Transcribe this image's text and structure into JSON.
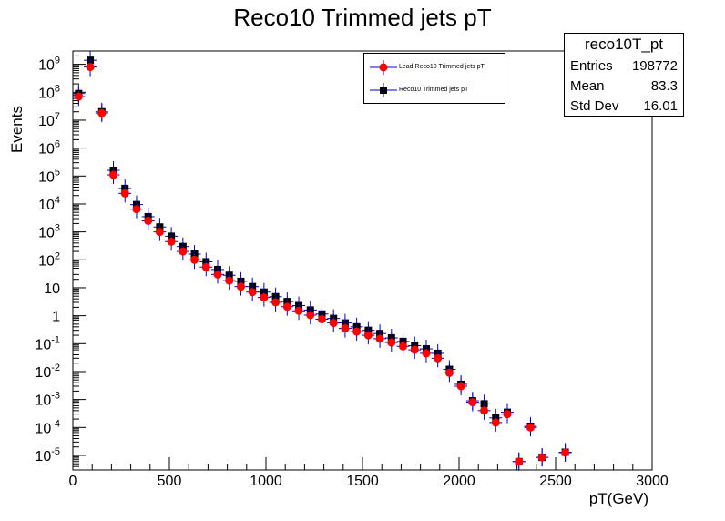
{
  "chart_data": {
    "type": "scatter",
    "title": "Reco10 Trimmed jets pT",
    "xlabel": "pT(GeV)",
    "ylabel": "Events",
    "xlim": [
      0,
      3000
    ],
    "ylim": [
      3e-06,
      3000000000.0
    ],
    "yscale": "log",
    "x_ticks": [
      "0",
      "500",
      "1000",
      "1500",
      "2000",
      "2500",
      "3000"
    ],
    "y_ticks": [
      {
        "base": "10",
        "exp": "-5"
      },
      {
        "base": "10",
        "exp": "-4"
      },
      {
        "base": "10",
        "exp": "-3"
      },
      {
        "base": "10",
        "exp": "-2"
      },
      {
        "base": "10",
        "exp": "-1"
      },
      {
        "base": "1",
        "exp": ""
      },
      {
        "base": "10",
        "exp": ""
      },
      {
        "base": "10",
        "exp": "2"
      },
      {
        "base": "10",
        "exp": "3"
      },
      {
        "base": "10",
        "exp": "4"
      },
      {
        "base": "10",
        "exp": "5"
      },
      {
        "base": "10",
        "exp": "6"
      },
      {
        "base": "10",
        "exp": "7"
      },
      {
        "base": "10",
        "exp": "8"
      },
      {
        "base": "10",
        "exp": "9"
      }
    ],
    "legend": {
      "placement": "top-right",
      "entries": [
        "Lead Reco10 Trimmed jets pT",
        "Reco10 Trimmed jets pT"
      ]
    },
    "series": [
      {
        "name": "Lead Reco10 Trimmed jets pT",
        "color": "#ff0000",
        "marker": "circle",
        "points": [
          [
            30,
            70000000.0
          ],
          [
            90,
            800000000.0
          ],
          [
            150,
            18000000.0
          ],
          [
            210,
            110000.0
          ],
          [
            270,
            24000.0
          ],
          [
            330,
            6500.0
          ],
          [
            390,
            2500.0
          ],
          [
            450,
            1000.0
          ],
          [
            510,
            450.0
          ],
          [
            570,
            200.0
          ],
          [
            630,
            100.0
          ],
          [
            690,
            55.0
          ],
          [
            750,
            30.0
          ],
          [
            810,
            18.0
          ],
          [
            870,
            11.0
          ],
          [
            930,
            7.0
          ],
          [
            990,
            4.5
          ],
          [
            1050,
            3.0
          ],
          [
            1110,
            2.1
          ],
          [
            1170,
            1.5
          ],
          [
            1230,
            1.05
          ],
          [
            1290,
            0.75
          ],
          [
            1350,
            0.55
          ],
          [
            1410,
            0.35
          ],
          [
            1470,
            0.27
          ],
          [
            1530,
            0.2
          ],
          [
            1590,
            0.15
          ],
          [
            1650,
            0.11
          ],
          [
            1710,
            0.08
          ],
          [
            1770,
            0.06
          ],
          [
            1830,
            0.045
          ],
          [
            1890,
            0.03
          ],
          [
            1950,
            0.009
          ],
          [
            2010,
            0.003
          ],
          [
            2070,
            0.0008
          ],
          [
            2130,
            0.0004
          ],
          [
            2190,
            0.00015
          ],
          [
            2250,
            0.0003
          ],
          [
            2310,
            6e-06
          ],
          [
            2370,
            0.0001
          ],
          [
            2430,
            8.5e-06
          ],
          [
            2550,
            1.25e-05
          ]
        ]
      },
      {
        "name": "Reco10 Trimmed jets pT",
        "color": "#000000",
        "marker": "square",
        "points": [
          [
            30,
            90000000.0
          ],
          [
            90,
            1400000000.0
          ],
          [
            150,
            20000000.0
          ],
          [
            210,
            160000.0
          ],
          [
            270,
            36000.0
          ],
          [
            330,
            9500.0
          ],
          [
            390,
            3500.0
          ],
          [
            450,
            1500.0
          ],
          [
            510,
            700.0
          ],
          [
            570,
            300.0
          ],
          [
            630,
            160.0
          ],
          [
            690,
            85.0
          ],
          [
            750,
            45.0
          ],
          [
            810,
            28.0
          ],
          [
            870,
            17.0
          ],
          [
            930,
            11.0
          ],
          [
            990,
            7.0
          ],
          [
            1050,
            4.8
          ],
          [
            1110,
            3.2
          ],
          [
            1170,
            2.3
          ],
          [
            1230,
            1.6
          ],
          [
            1290,
            1.15
          ],
          [
            1350,
            0.8
          ],
          [
            1410,
            0.55
          ],
          [
            1470,
            0.4
          ],
          [
            1530,
            0.3
          ],
          [
            1590,
            0.23
          ],
          [
            1650,
            0.16
          ],
          [
            1710,
            0.12
          ],
          [
            1770,
            0.085
          ],
          [
            1830,
            0.065
          ],
          [
            1890,
            0.045
          ],
          [
            1950,
            0.012
          ],
          [
            2010,
            0.0035
          ],
          [
            2070,
            0.0009
          ],
          [
            2130,
            0.0007
          ],
          [
            2190,
            0.00022
          ],
          [
            2250,
            0.00035
          ],
          [
            2310,
            6e-06
          ],
          [
            2370,
            0.00011
          ],
          [
            2430,
            8.5e-06
          ],
          [
            2550,
            1.3e-05
          ]
        ]
      }
    ]
  },
  "stats_box": {
    "title": "reco10T_pt",
    "rows": [
      {
        "label": "Entries",
        "value": "198772"
      },
      {
        "label": "Mean",
        "value": "83.3"
      },
      {
        "label": "Std Dev",
        "value": "16.01"
      }
    ]
  }
}
